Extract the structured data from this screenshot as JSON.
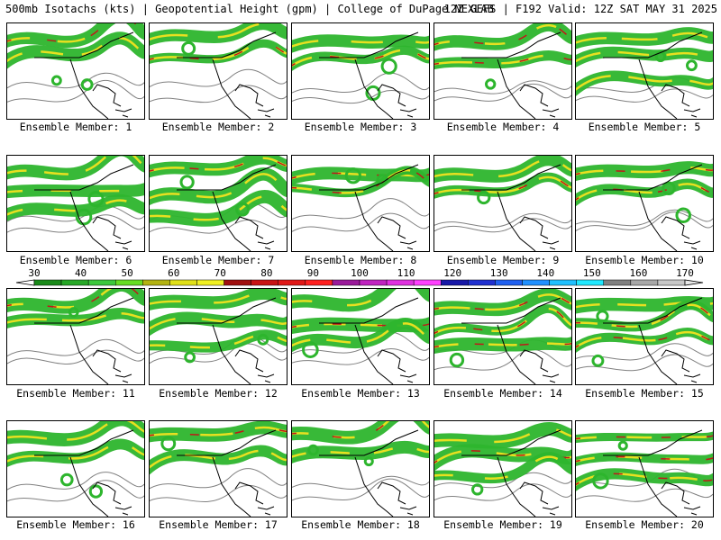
{
  "header": {
    "left": "500mb Isotachs (kts) | Geopotential Height (gpm) | College of DuPage NEXLAB",
    "right": "12Z GEFS | F192 Valid: 12Z SAT MAY 31 2025"
  },
  "panels": [
    {
      "label": "Ensemble Member: 1"
    },
    {
      "label": "Ensemble Member: 2"
    },
    {
      "label": "Ensemble Member: 3"
    },
    {
      "label": "Ensemble Member: 4"
    },
    {
      "label": "Ensemble Member: 5"
    },
    {
      "label": "Ensemble Member: 6"
    },
    {
      "label": "Ensemble Member: 7"
    },
    {
      "label": "Ensemble Member: 8"
    },
    {
      "label": "Ensemble Member: 9"
    },
    {
      "label": "Ensemble Member: 10"
    },
    {
      "label": "Ensemble Member: 11"
    },
    {
      "label": "Ensemble Member: 12"
    },
    {
      "label": "Ensemble Member: 13"
    },
    {
      "label": "Ensemble Member: 14"
    },
    {
      "label": "Ensemble Member: 15"
    },
    {
      "label": "Ensemble Member: 16"
    },
    {
      "label": "Ensemble Member: 17"
    },
    {
      "label": "Ensemble Member: 18"
    },
    {
      "label": "Ensemble Member: 19"
    },
    {
      "label": "Ensemble Member: 20"
    }
  ],
  "colorbar": {
    "ticks": [
      "30",
      "40",
      "50",
      "60",
      "70",
      "80",
      "90",
      "100",
      "110",
      "120",
      "130",
      "140",
      "150",
      "160",
      "170"
    ],
    "colors": [
      "#1a8a1a",
      "#27a827",
      "#3cc83c",
      "#66dd22",
      "#b3b312",
      "#e0e018",
      "#f0f022",
      "#a01010",
      "#c81414",
      "#e01818",
      "#ff2020",
      "#9a1a9a",
      "#c024c0",
      "#e030e0",
      "#ff40ff",
      "#1818a8",
      "#2030d0",
      "#2060f0",
      "#2090ff",
      "#20c0ff",
      "#20e8ff",
      "#808080",
      "#a8a8a8",
      "#c8c8c8"
    ],
    "palette": {
      "jet_green": "#2db52d",
      "jet_yellow": "#e8e020",
      "jet_red": "#c01818",
      "height_contour": "#808080",
      "coast": "#000000"
    }
  }
}
